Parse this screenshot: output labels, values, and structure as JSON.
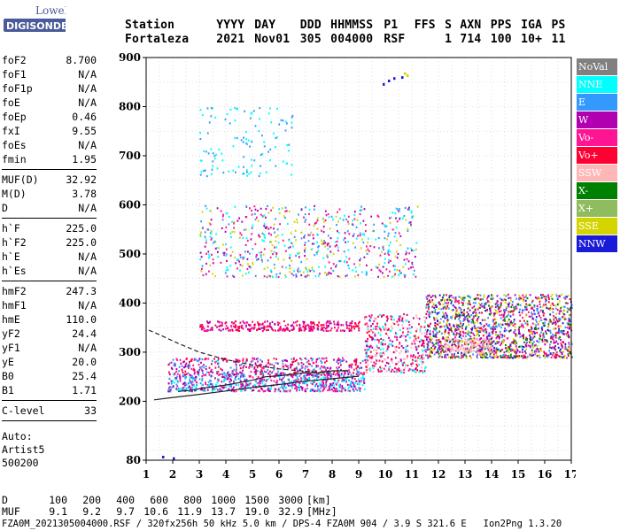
{
  "logo": {
    "brand": "Lowell",
    "product": "DIGISONDE"
  },
  "header": {
    "labels": [
      "Station",
      "YYYY",
      "DAY",
      "DDD",
      "HHMMSS",
      "P1",
      "FFS",
      "S",
      "AXN",
      "PPS",
      "IGA",
      "PS"
    ],
    "values": [
      "Fortaleza",
      "2021",
      "Nov01",
      "305",
      "004000",
      "RSF",
      "",
      "1",
      "714",
      "100",
      "10+",
      "11"
    ]
  },
  "params": [
    {
      "group": [
        {
          "name": "foF2",
          "value": "8.700"
        },
        {
          "name": "foF1",
          "value": "N/A"
        },
        {
          "name": "foF1p",
          "value": "N/A"
        },
        {
          "name": "foE",
          "value": "N/A"
        },
        {
          "name": "foEp",
          "value": "0.46"
        },
        {
          "name": "fxI",
          "value": "9.55"
        },
        {
          "name": "foEs",
          "value": "N/A"
        },
        {
          "name": "fmin",
          "value": "1.95"
        }
      ]
    },
    {
      "group": [
        {
          "name": "MUF(D)",
          "value": "32.92"
        },
        {
          "name": "M(D)",
          "value": "3.78"
        },
        {
          "name": "D",
          "value": "N/A"
        }
      ]
    },
    {
      "group": [
        {
          "name": "h`F",
          "value": "225.0"
        },
        {
          "name": "h`F2",
          "value": "225.0"
        },
        {
          "name": "h`E",
          "value": "N/A"
        },
        {
          "name": "h`Es",
          "value": "N/A"
        }
      ]
    },
    {
      "group": [
        {
          "name": "hmF2",
          "value": "247.3"
        },
        {
          "name": "hmF1",
          "value": "N/A"
        },
        {
          "name": "hmE",
          "value": "110.0"
        },
        {
          "name": "yF2",
          "value": "24.4"
        },
        {
          "name": "yF1",
          "value": "N/A"
        },
        {
          "name": "yE",
          "value": "20.0"
        },
        {
          "name": "B0",
          "value": "25.4"
        },
        {
          "name": "B1",
          "value": "1.71"
        }
      ]
    },
    {
      "group": [
        {
          "name": "C-level",
          "value": "33"
        }
      ]
    }
  ],
  "auto": {
    "label": "Auto:",
    "artist": "Artist5",
    "code": "500200"
  },
  "legend": [
    {
      "label": "NoVal",
      "color": "#808080"
    },
    {
      "label": "NNE",
      "color": "#00ffff"
    },
    {
      "label": "E",
      "color": "#3399ff"
    },
    {
      "label": "W",
      "color": "#b000b0"
    },
    {
      "label": "Vo-",
      "color": "#ff1493"
    },
    {
      "label": "Vo+",
      "color": "#ff0033"
    },
    {
      "label": "SSW",
      "color": "#ffb6b6"
    },
    {
      "label": "X-",
      "color": "#008000"
    },
    {
      "label": "X+",
      "color": "#8fbc5f"
    },
    {
      "label": "SSE",
      "color": "#d4d400"
    },
    {
      "label": "NNW",
      "color": "#1a1ad9"
    }
  ],
  "dm_table": {
    "d_label": "D",
    "d_values": [
      "100",
      "200",
      "400",
      "600",
      "800",
      "1000",
      "1500",
      "3000"
    ],
    "d_unit": "[km]",
    "muf_label": "MUF",
    "muf_values": [
      "9.1",
      "9.2",
      "9.7",
      "10.6",
      "11.9",
      "13.7",
      "19.0",
      "32.9"
    ],
    "muf_unit": "[MHz]"
  },
  "footer": "FZA0M_2021305004000.RSF / 320fx256h 50 kHz 5.0 km / DPS-4 FZA0M 904 / 3.9 S 321.6 E   Ion2Png 1.3.20",
  "chart_data": {
    "type": "scatter",
    "x_ticks": [
      1,
      2,
      3,
      4,
      5,
      6,
      7,
      8,
      9,
      10,
      11,
      12,
      13,
      14,
      15,
      16,
      17
    ],
    "y_ticks": [
      80,
      200,
      300,
      400,
      500,
      600,
      700,
      800,
      900
    ],
    "xlim": [
      1,
      17
    ],
    "ylim": [
      80,
      900
    ],
    "grid": true,
    "legend_position": "right",
    "traces": [
      {
        "name": "dashed",
        "style": "dashed",
        "points": [
          [
            1.1,
            345
          ],
          [
            1.6,
            333
          ],
          [
            2.2,
            318
          ],
          [
            3,
            300
          ],
          [
            4,
            285
          ],
          [
            5,
            274
          ],
          [
            6,
            266
          ],
          [
            7,
            261
          ],
          [
            8,
            258
          ]
        ]
      },
      {
        "name": "solid",
        "style": "solid",
        "points": [
          [
            1.3,
            203
          ],
          [
            1.9,
            207
          ],
          [
            3,
            214
          ],
          [
            4,
            221
          ],
          [
            5,
            228
          ],
          [
            6,
            234
          ],
          [
            7,
            241
          ],
          [
            8,
            246
          ],
          [
            9,
            251
          ]
        ]
      },
      {
        "name": "echo",
        "style": "solid",
        "points": [
          [
            2.2,
            220
          ],
          [
            2.6,
            222
          ],
          [
            3.2,
            227
          ],
          [
            4,
            233
          ],
          [
            5,
            243
          ],
          [
            5.5,
            250
          ],
          [
            6,
            252
          ],
          [
            7,
            258
          ],
          [
            7.5,
            258
          ],
          [
            8,
            262
          ],
          [
            8.6,
            262
          ]
        ]
      }
    ],
    "point_series": [
      {
        "legend": "NNW",
        "points": [
          [
            2.0,
            86
          ],
          [
            1.6,
            89
          ]
        ]
      },
      {
        "legend": "NNW",
        "points": [
          [
            9.9,
            848
          ],
          [
            10.1,
            855
          ],
          [
            10.3,
            860
          ],
          [
            10.6,
            862
          ]
        ]
      },
      {
        "legend": "SSE",
        "points": [
          [
            10.7,
            870
          ],
          [
            10.8,
            866
          ]
        ]
      }
    ],
    "clouds": [
      {
        "x": [
          1.8,
          9.2
        ],
        "y": [
          222,
          258
        ],
        "legends": [
          "W",
          "E",
          "Vo-",
          "NNE"
        ],
        "density": 700
      },
      {
        "x": [
          1.8,
          9.2
        ],
        "y": [
          255,
          290
        ],
        "legends": [
          "Vo-",
          "W",
          "Vo+",
          "E"
        ],
        "density": 450
      },
      {
        "x": [
          3.0,
          9.0
        ],
        "y": [
          345,
          365
        ],
        "legends": [
          "W",
          "Vo-",
          "Vo+"
        ],
        "density": 300
      },
      {
        "x": [
          9.2,
          11.5
        ],
        "y": [
          260,
          380
        ],
        "legends": [
          "Vo+",
          "W",
          "Vo-",
          "SSW",
          "NNE"
        ],
        "density": 420
      },
      {
        "x": [
          11.5,
          17
        ],
        "y": [
          290,
          420
        ],
        "legends": [
          "NNW",
          "W",
          "Vo-",
          "Vo+",
          "SSE",
          "E",
          "X-"
        ],
        "density": 1500
      },
      {
        "x": [
          3.0,
          11.2
        ],
        "y": [
          455,
          600
        ],
        "legends": [
          "E",
          "NNE",
          "W",
          "Vo-",
          "SSE"
        ],
        "density": 650
      },
      {
        "x": [
          3.0,
          6.5
        ],
        "y": [
          660,
          800
        ],
        "legends": [
          "NNE",
          "E"
        ],
        "density": 120
      },
      {
        "x": [
          12.2,
          14.0
        ],
        "y": [
          300,
          330
        ],
        "legends": [
          "SSW"
        ],
        "density": 120
      }
    ]
  }
}
